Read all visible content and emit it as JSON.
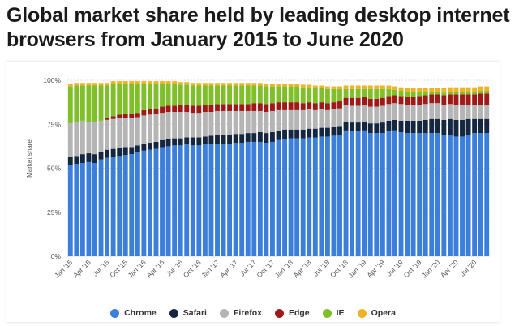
{
  "title": "Global market share held by leading desktop internet browsers from January 2015 to June 2020",
  "chart_data": {
    "type": "bar",
    "stacked": true,
    "title": "Global market share held by leading desktop internet browsers from January 2015 to June 2020",
    "xlabel": "",
    "ylabel": "Market share",
    "ylim": [
      0,
      100
    ],
    "y_ticks": [
      "0%",
      "25%",
      "50%",
      "75%",
      "100%"
    ],
    "grid": true,
    "legend_position": "bottom",
    "x_tick_labels": [
      "Jan '15",
      "Apr '15",
      "Jul '15",
      "Oct '15",
      "Jan '16",
      "Apr '16",
      "Jul '16",
      "Oct '16",
      "Jan '17",
      "Apr '17",
      "Jul '17",
      "Oct '17",
      "Jan '18",
      "Apr '18",
      "Jul '18",
      "Oct '18",
      "Jan '19",
      "Apr '19",
      "Jul '19",
      "Oct '19",
      "Jan '20",
      "Apr '20",
      "Jul '20"
    ],
    "tick_every": 3,
    "categories": [
      "Jan '15",
      "Feb '15",
      "Mar '15",
      "Apr '15",
      "May '15",
      "Jun '15",
      "Jul '15",
      "Aug '15",
      "Sep '15",
      "Oct '15",
      "Nov '15",
      "Dec '15",
      "Jan '16",
      "Feb '16",
      "Mar '16",
      "Apr '16",
      "May '16",
      "Jun '16",
      "Jul '16",
      "Aug '16",
      "Sep '16",
      "Oct '16",
      "Nov '16",
      "Dec '16",
      "Jan '17",
      "Feb '17",
      "Mar '17",
      "Apr '17",
      "May '17",
      "Jun '17",
      "Jul '17",
      "Aug '17",
      "Sep '17",
      "Oct '17",
      "Nov '17",
      "Dec '17",
      "Jan '18",
      "Feb '18",
      "Mar '18",
      "Apr '18",
      "May '18",
      "Jun '18",
      "Jul '18",
      "Aug '18",
      "Sep '18",
      "Oct '18",
      "Nov '18",
      "Dec '18",
      "Jan '19",
      "Feb '19",
      "Mar '19",
      "Apr '19",
      "May '19",
      "Jun '19",
      "Jul '19",
      "Aug '19",
      "Sep '19",
      "Oct '19",
      "Nov '19",
      "Dec '19",
      "Jan '20",
      "Feb '20",
      "Mar '20",
      "Apr '20",
      "May '20",
      "Jun '20",
      "Jul '20",
      "Aug '20",
      "Sep '20"
    ],
    "series": [
      {
        "name": "Chrome",
        "color": "#3c7fdb",
        "values": [
          52,
          52.5,
          53,
          53.5,
          53,
          55,
          56,
          56.5,
          57,
          57.5,
          58,
          59,
          60,
          60.5,
          61,
          62,
          62.5,
          63,
          63,
          63.5,
          63,
          63,
          63.5,
          64,
          64,
          64,
          64,
          64.5,
          64.5,
          65,
          65,
          65,
          64.5,
          65,
          66,
          66.5,
          67,
          67,
          67,
          67.5,
          67.5,
          68,
          68,
          68.5,
          69,
          71.5,
          71,
          71,
          71.5,
          70,
          70,
          70,
          71,
          71.5,
          70.5,
          70,
          70,
          70,
          70,
          70,
          70,
          69,
          69,
          68,
          68,
          69,
          70,
          70,
          70
        ]
      },
      {
        "name": "Safari",
        "color": "#142640",
        "values": [
          4.5,
          4.5,
          5,
          5,
          5,
          4.5,
          4.5,
          4.5,
          4.5,
          4.5,
          4,
          4,
          4,
          4,
          4,
          4,
          4,
          4,
          4,
          4,
          4.5,
          4.5,
          4.5,
          4.5,
          5,
          5,
          5,
          5,
          5,
          5,
          5,
          5.5,
          5.5,
          5.5,
          5.5,
          5.5,
          5,
          5,
          5,
          5,
          5,
          5,
          5,
          5,
          5,
          5,
          5,
          5,
          5,
          5.5,
          5.5,
          6,
          6,
          6,
          6.5,
          7,
          7,
          7,
          7.5,
          8,
          8,
          8.5,
          9,
          9.5,
          9.5,
          9,
          8,
          8,
          8
        ]
      },
      {
        "name": "Firefox",
        "color": "#b5b5b5",
        "values": [
          19,
          19.5,
          19,
          18,
          18.5,
          17.5,
          17,
          17,
          17,
          16.5,
          16.5,
          16,
          16,
          16,
          16,
          15.5,
          15.5,
          15,
          15,
          14.5,
          14,
          14,
          14,
          13.5,
          13.5,
          13.5,
          13.5,
          13,
          13,
          12.5,
          12.5,
          12,
          12,
          12,
          11.5,
          11,
          11,
          11,
          11,
          11,
          10.5,
          10.5,
          10,
          10,
          10,
          9.5,
          9.5,
          9.5,
          9.5,
          9.5,
          9.5,
          9.5,
          9.5,
          9.5,
          9.5,
          9,
          9,
          9,
          9,
          9,
          9,
          8.5,
          8.5,
          8.5,
          8.5,
          8,
          8,
          8,
          8
        ]
      },
      {
        "name": "Edge",
        "color": "#a01919",
        "values": [
          0,
          0,
          0,
          0,
          0,
          0,
          1,
          1.5,
          2,
          2.5,
          2.5,
          2.5,
          3,
          3,
          3,
          3.5,
          3.5,
          3.5,
          4,
          4,
          4,
          4,
          4,
          4,
          4,
          4,
          4,
          4,
          4,
          4,
          4.5,
          4.5,
          4.5,
          4.5,
          4.5,
          4.5,
          4.5,
          4.5,
          4,
          4,
          4,
          4,
          4,
          4,
          4,
          4,
          4.5,
          4.5,
          4.5,
          4.5,
          4.5,
          4.5,
          4.5,
          4.5,
          4.5,
          4.5,
          4.5,
          5,
          5,
          5,
          5,
          5.5,
          5.5,
          6,
          6,
          6,
          6,
          6.5,
          6.5
        ]
      },
      {
        "name": "IE",
        "color": "#7fbf2a",
        "values": [
          21,
          20.5,
          20,
          20.5,
          20.5,
          20,
          18.5,
          18.5,
          17.5,
          17,
          17,
          16.5,
          15,
          14.5,
          14,
          13,
          12.5,
          12.5,
          11.5,
          11.5,
          11.5,
          11.5,
          11,
          11,
          10.5,
          10.5,
          10.5,
          10.5,
          10.5,
          10.5,
          10,
          10,
          10,
          9.5,
          9,
          9,
          9,
          9,
          9,
          8.5,
          8.5,
          8,
          8,
          7.5,
          7,
          5,
          5,
          5,
          4.5,
          5.5,
          5.5,
          5,
          4,
          3,
          3,
          3,
          3,
          2.5,
          2,
          1.5,
          1.5,
          1.5,
          1.5,
          1.5,
          1.5,
          1.5,
          1.5,
          1.5,
          1.5
        ]
      },
      {
        "name": "Opera",
        "color": "#f0b323",
        "values": [
          1.5,
          1.5,
          1.5,
          1.5,
          1.5,
          1.5,
          1.5,
          1.5,
          1.5,
          1.5,
          1.5,
          1.5,
          1.5,
          1.5,
          1.5,
          1.5,
          1.5,
          1.5,
          1.5,
          1.5,
          1.5,
          1.5,
          1.5,
          1.5,
          1.5,
          1.5,
          1.5,
          1.5,
          1.5,
          1.5,
          1.5,
          1.5,
          1.5,
          1.5,
          1.5,
          1.5,
          1.5,
          1.5,
          1.5,
          1.5,
          1.5,
          1.5,
          1.5,
          1.5,
          1.5,
          2,
          2,
          2,
          2,
          2,
          2,
          2,
          2,
          2,
          2,
          2,
          2,
          2,
          2,
          2,
          2,
          2.5,
          2.5,
          2.5,
          2.5,
          2.5,
          2.5,
          2.5,
          2.5
        ]
      }
    ]
  }
}
